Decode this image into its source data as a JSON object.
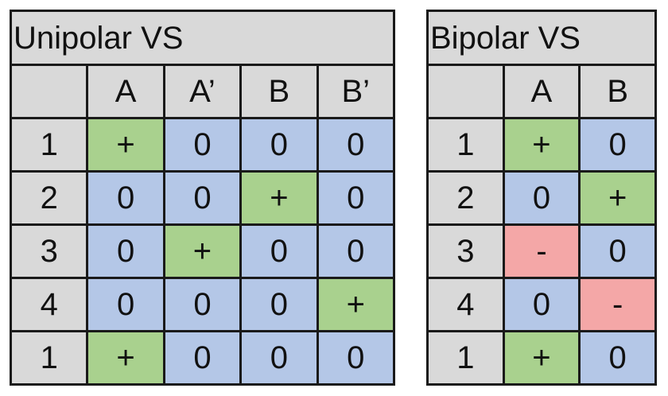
{
  "unipolar": {
    "title": "Unipolar VS",
    "columns": [
      "",
      "A",
      "A’",
      "B",
      "B’"
    ],
    "rows": [
      {
        "label": "1",
        "values": [
          "+",
          "0",
          "0",
          "0"
        ]
      },
      {
        "label": "2",
        "values": [
          "0",
          "0",
          "+",
          "0"
        ]
      },
      {
        "label": "3",
        "values": [
          "0",
          "+",
          "0",
          "0"
        ]
      },
      {
        "label": "4",
        "values": [
          "0",
          "0",
          "0",
          "+"
        ]
      },
      {
        "label": "1",
        "values": [
          "+",
          "0",
          "0",
          "0"
        ]
      }
    ]
  },
  "bipolar": {
    "title": "Bipolar VS",
    "columns": [
      "",
      "A",
      "B"
    ],
    "rows": [
      {
        "label": "1",
        "values": [
          "+",
          "0"
        ]
      },
      {
        "label": "2",
        "values": [
          "0",
          "+"
        ]
      },
      {
        "label": "3",
        "values": [
          "-",
          "0"
        ]
      },
      {
        "label": "4",
        "values": [
          "0",
          "-"
        ]
      },
      {
        "label": "1",
        "values": [
          "+",
          "0"
        ]
      }
    ]
  },
  "colors": {
    "positive": "#a9d18e",
    "zero": "#b4c7e7",
    "negative": "#f4a7a7",
    "header": "#d9d9d9"
  }
}
